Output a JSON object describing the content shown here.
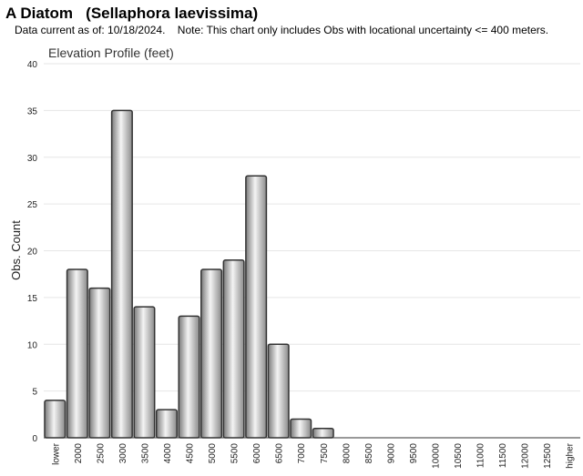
{
  "header": {
    "title": "A Diatom   (Sellaphora laevissima)",
    "subtitle": "Data current as of: 10/18/2024.    Note: This chart only includes Obs with locational uncertainty <= 400 meters."
  },
  "chart_data": {
    "type": "bar",
    "title": "Elevation Profile (feet)",
    "xlabel": "",
    "ylabel": "Obs. Count",
    "ylim": [
      0,
      40
    ],
    "yticks": [
      0,
      5,
      10,
      15,
      20,
      25,
      30,
      35,
      40
    ],
    "categories": [
      "lower",
      "2000",
      "2500",
      "3000",
      "3500",
      "4000",
      "4500",
      "5000",
      "5500",
      "6000",
      "6500",
      "7000",
      "7500",
      "8000",
      "8500",
      "9000",
      "9500",
      "10000",
      "10500",
      "11000",
      "11500",
      "12000",
      "12500",
      "higher"
    ],
    "values": [
      4,
      18,
      16,
      35,
      14,
      3,
      13,
      18,
      19,
      28,
      10,
      2,
      1,
      0,
      0,
      0,
      0,
      0,
      0,
      0,
      0,
      0,
      0,
      0
    ],
    "grid": true,
    "colors": {
      "bar_edge": "#333333",
      "bar_dark": "#7a7a7a",
      "bar_light": "#f2f2f2",
      "grid": "#e6e6e6"
    }
  }
}
